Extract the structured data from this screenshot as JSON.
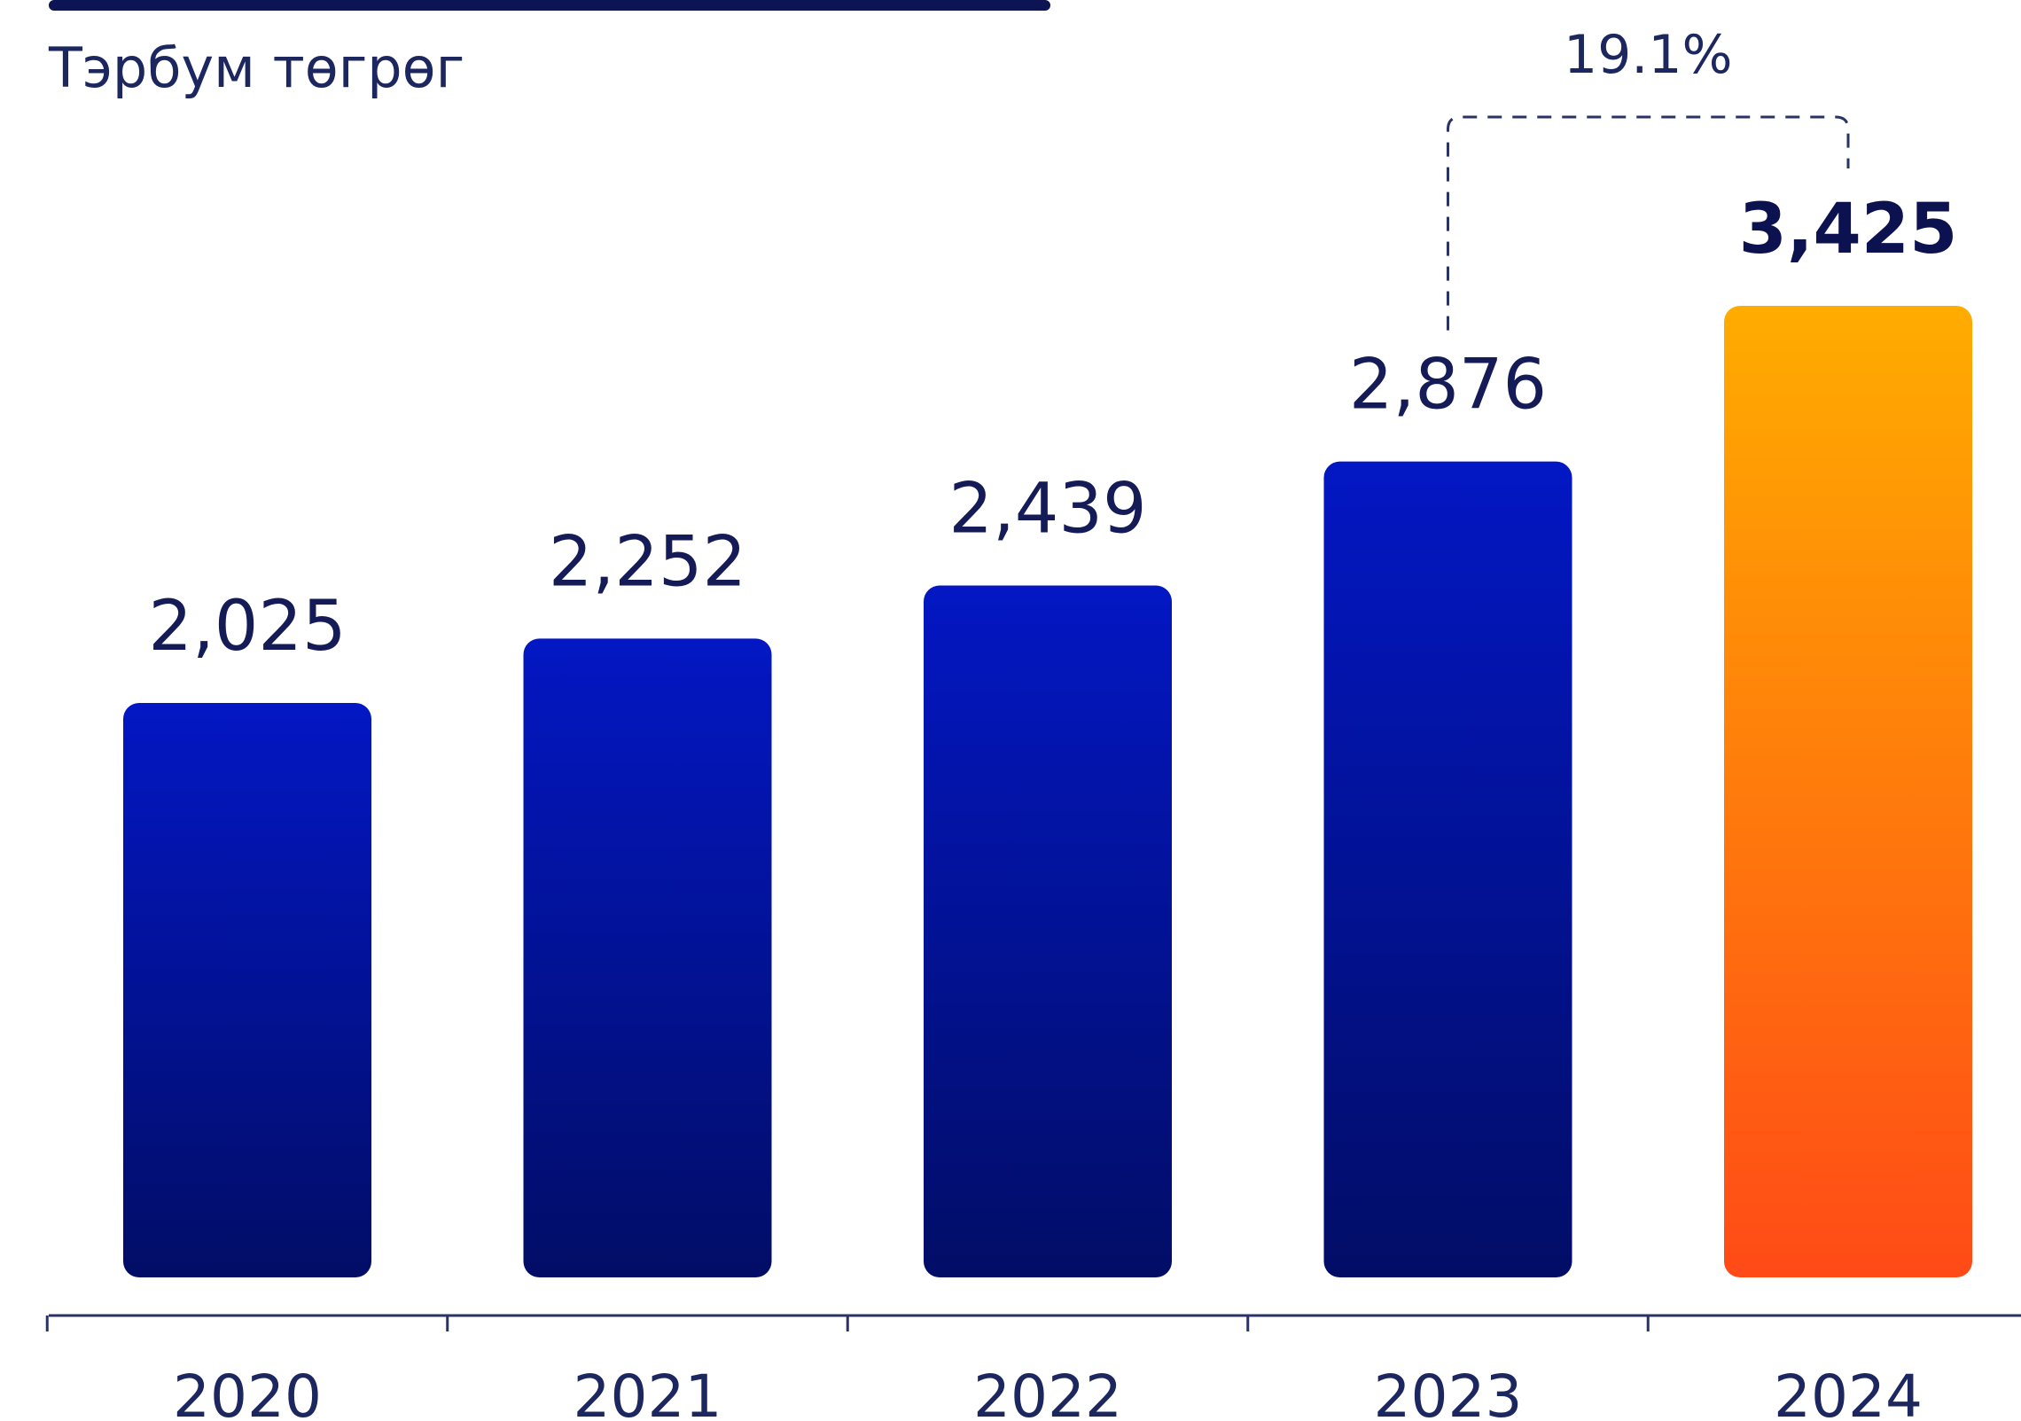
{
  "chart_data": {
    "type": "bar",
    "unit": "Тэрбум төгрөг",
    "categories": [
      "2020",
      "2021",
      "2022",
      "2023",
      "2024"
    ],
    "values": [
      2025,
      2252,
      2439,
      2876,
      3425
    ],
    "value_labels": [
      "2,025",
      "2,252",
      "2,439",
      "2,876",
      "3,425"
    ],
    "highlight_index": 4,
    "growth": {
      "label": "19.1%",
      "from_index": 3,
      "to_index": 4
    },
    "ylim": [
      0,
      3425
    ],
    "grid": false,
    "legend": "none",
    "colors": {
      "bar_top": "#0317c4",
      "bar_bottom": "#020d66",
      "highlight_top": "#ffac00",
      "highlight_bottom": "#ff4a17",
      "text": "#1c2760",
      "axis": "#2a3366"
    }
  }
}
